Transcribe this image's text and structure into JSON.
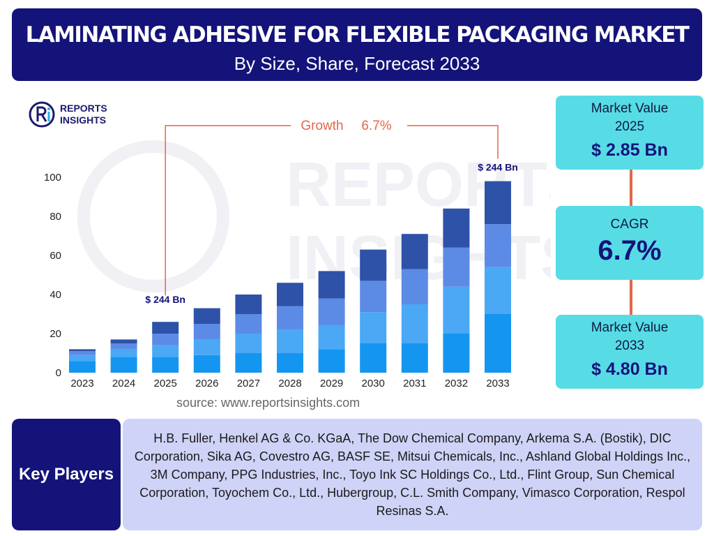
{
  "header": {
    "title": "LAMINATING ADHESIVE FOR FLEXIBLE PACKAGING MARKET",
    "subtitle": "By Size, Share, Forecast 2033"
  },
  "logo": {
    "line1": "REPORTS",
    "line2": "INSIGHTS",
    "watermark_line1": "REPORTS",
    "watermark_line2": "INSIGHTS"
  },
  "chart_data": {
    "type": "bar",
    "stacked": true,
    "categories": [
      "2023",
      "2024",
      "2025",
      "2026",
      "2027",
      "2028",
      "2029",
      "2030",
      "2031",
      "2032",
      "2033"
    ],
    "yticks": [
      0,
      20,
      40,
      60,
      80,
      100
    ],
    "ylim": [
      0,
      100
    ],
    "series": [
      {
        "values": [
          6,
          8,
          8,
          9,
          10,
          10,
          12,
          15,
          15,
          20,
          30
        ],
        "color": "#1496f0"
      },
      {
        "values": [
          3,
          4,
          6,
          8,
          10,
          12,
          12,
          16,
          20,
          24,
          24
        ],
        "color": "#4aa8f5"
      },
      {
        "values": [
          2,
          3,
          6,
          8,
          10,
          12,
          14,
          16,
          18,
          20,
          22
        ],
        "color": "#5c8be6"
      },
      {
        "values": [
          1,
          2,
          6,
          8,
          10,
          12,
          14,
          16,
          18,
          20,
          22
        ],
        "color": "#2e52a8"
      }
    ],
    "annotations": {
      "growth_label": "Growth",
      "growth_value": "6.7%",
      "start_label": "$ 244 Bn",
      "end_label": "$ 244 Bn"
    },
    "colors": {
      "growth_line": "#e2674a",
      "value_label": "#14137a"
    }
  },
  "stats": {
    "market_value_2025_label": "Market Value 2025",
    "market_value_2025": "$ 2.85 Bn",
    "cagr_label": "CAGR",
    "cagr": "6.7%",
    "market_value_2033_label": "Market Value 2033",
    "market_value_2033": "$ 4.80 Bn"
  },
  "source": "source: www.reportsinsights.com",
  "key_players": {
    "label": "Key Players",
    "text": "H.B. Fuller, Henkel AG & Co. KGaA, The Dow Chemical Company, Arkema S.A. (Bostik), DIC Corporation, Sika AG, Covestro AG, BASF SE, Mitsui Chemicals, Inc., Ashland Global Holdings Inc., 3M Company, PPG Industries, Inc., Toyo Ink SC Holdings Co., Ltd., Flint Group, Sun Chemical Corporation, Toyochem Co., Ltd., Hubergroup, C.L. Smith Company, Vimasco Corporation, Respol Resinas S.A."
  },
  "colors": {
    "navy": "#14137a",
    "cyan": "#57dce6",
    "connector": "#e2674a",
    "lavender": "#cfd3f7"
  }
}
